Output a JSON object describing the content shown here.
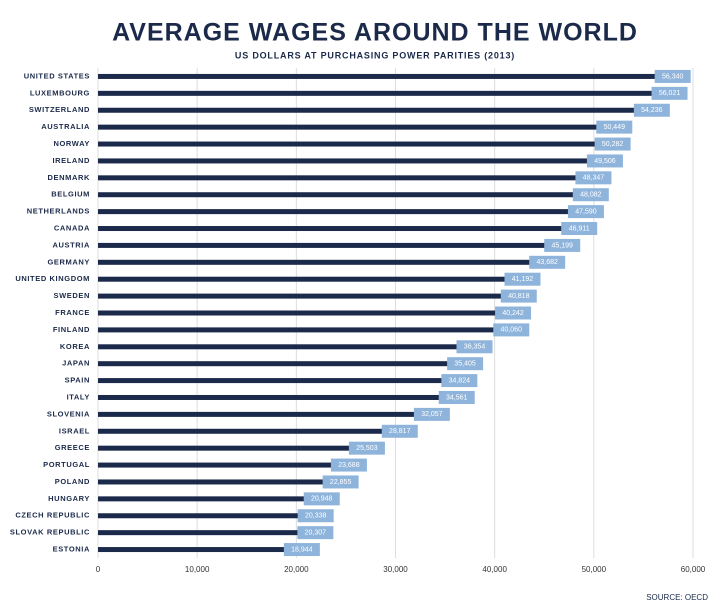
{
  "chart_data": {
    "type": "barh",
    "title": "AVERAGE WAGES AROUND THE WORLD",
    "subtitle": "US DOLLARS AT PURCHASING POWER PARITIES (2013)",
    "source": "SOURCE: OECD",
    "categories": [
      "UNITED STATES",
      "LUXEMBOURG",
      "SWITZERLAND",
      "AUSTRALIA",
      "NORWAY",
      "IRELAND",
      "DENMARK",
      "BELGIUM",
      "NETHERLANDS",
      "CANADA",
      "AUSTRIA",
      "GERMANY",
      "UNITED KINGDOM",
      "SWEDEN",
      "FRANCE",
      "FINLAND",
      "KOREA",
      "JAPAN",
      "SPAIN",
      "ITALY",
      "SLOVENIA",
      "ISRAEL",
      "GREECE",
      "PORTUGAL",
      "POLAND",
      "HUNGARY",
      "CZECH REPUBLIC",
      "SLOVAK REPUBLIC",
      "ESTONIA"
    ],
    "values": [
      56340,
      56021,
      54236,
      50449,
      50282,
      49506,
      48347,
      48082,
      47590,
      46911,
      45199,
      43682,
      41192,
      40818,
      40242,
      40060,
      36354,
      35405,
      34824,
      34561,
      32057,
      28817,
      25503,
      23688,
      22855,
      20948,
      20338,
      20307,
      18944
    ],
    "value_labels": [
      "56,340",
      "56,021",
      "54,236",
      "50,449",
      "50,282",
      "49,506",
      "48,347",
      "48,082",
      "47,590",
      "46,911",
      "45,199",
      "43,682",
      "41,192",
      "40,818",
      "40,242",
      "40,060",
      "36,354",
      "35,405",
      "34,824",
      "34,561",
      "32,057",
      "28,817",
      "25,503",
      "23,688",
      "22,855",
      "20,948",
      "20,338",
      "20,307",
      "18,944"
    ],
    "color": "#1b2a4a",
    "label_color": "#8fb4dc",
    "xlim": [
      0,
      60000
    ],
    "xticks": [
      0,
      {
        "value": 10000,
        "label": "10,000"
      },
      {
        "value": 20000,
        "label": "20,000"
      },
      {
        "value": 30000,
        "label": "30,000"
      },
      {
        "value": 40000,
        "label": "40,000"
      },
      {
        "value": 50000,
        "label": "50,000"
      },
      {
        "value": 60000,
        "label": "60,000"
      }
    ],
    "grid": true
  }
}
